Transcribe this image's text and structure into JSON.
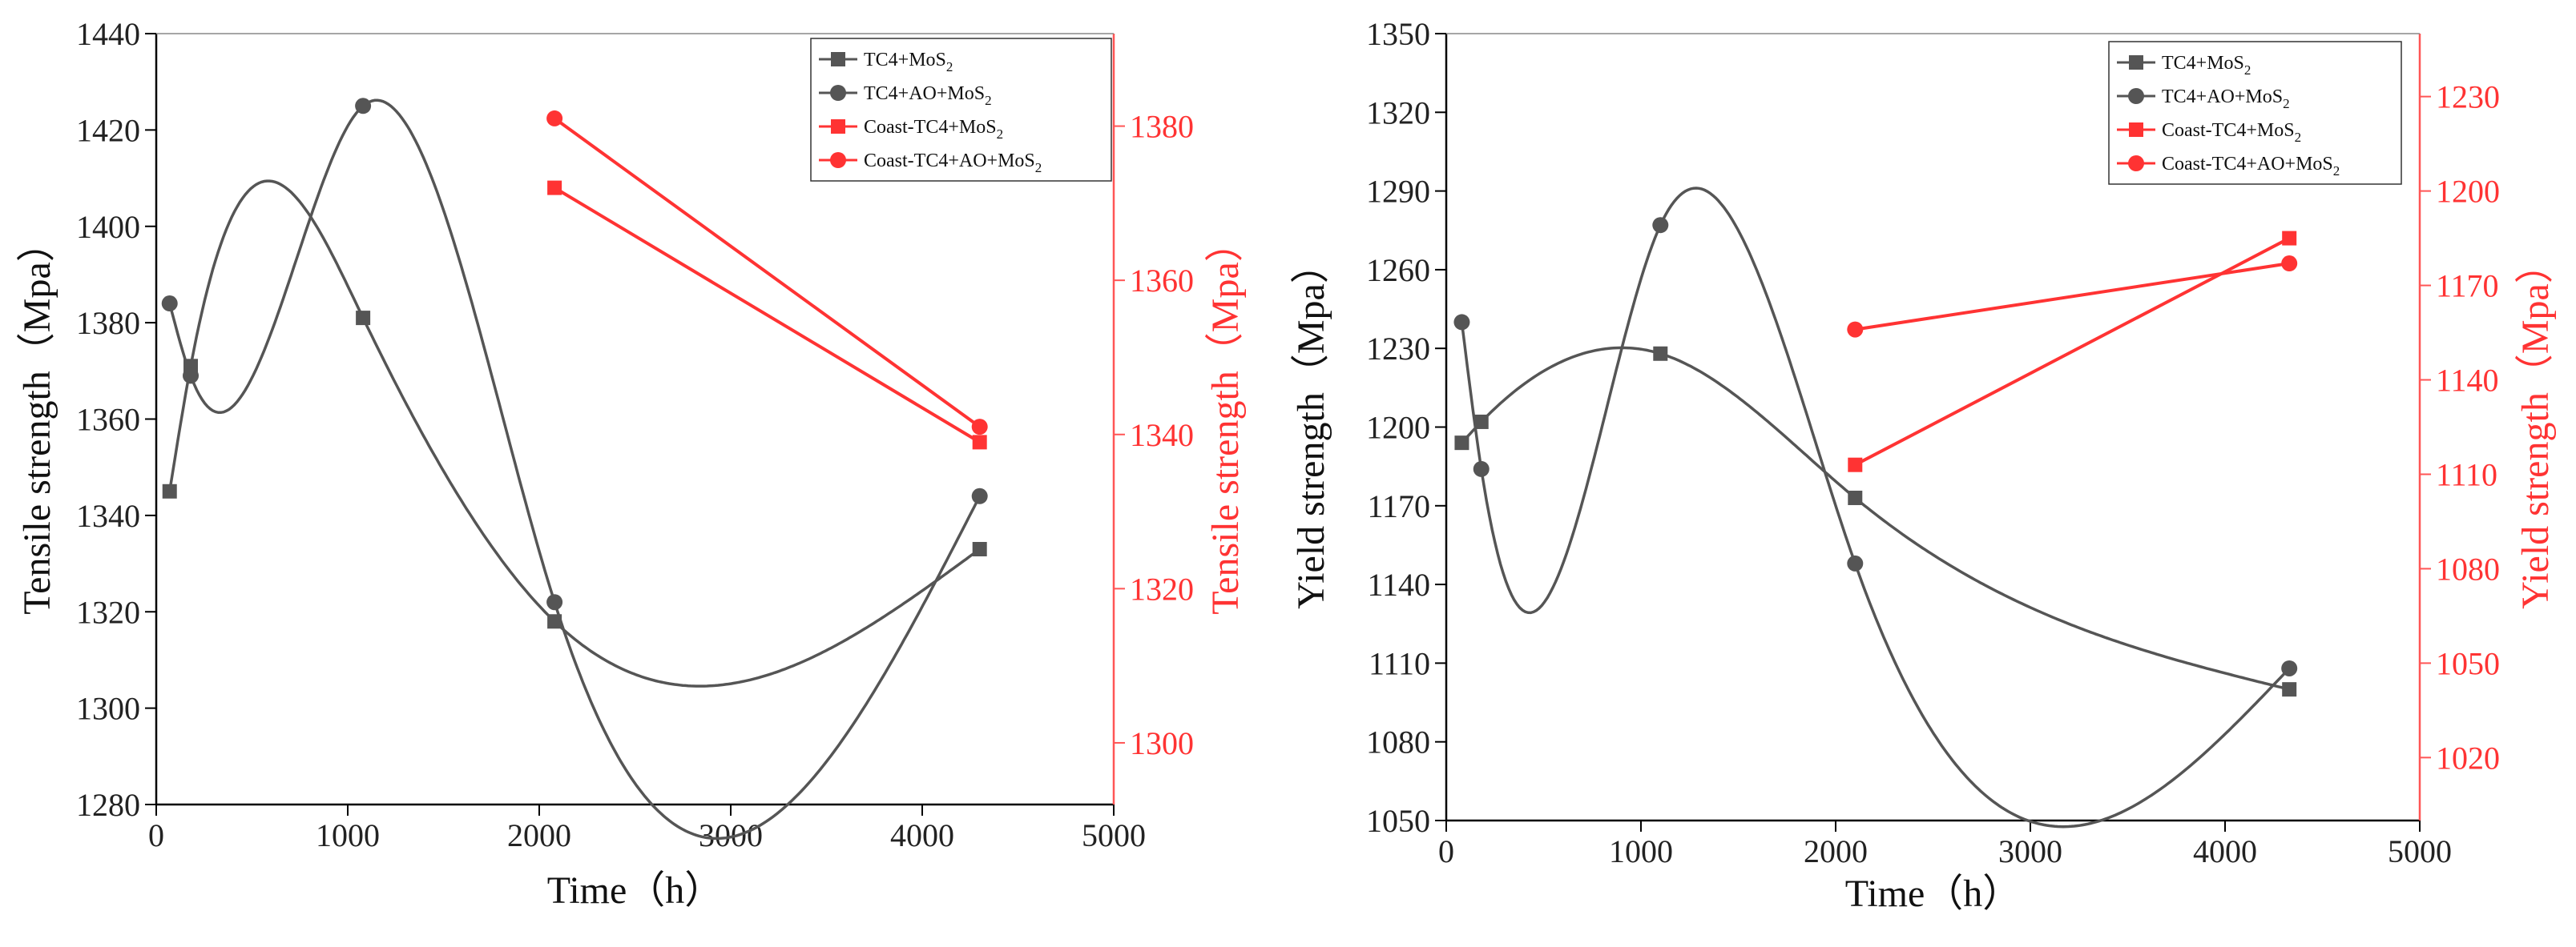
{
  "colors": {
    "black_series": "#555555",
    "red_series": "#ff3333",
    "axis": "#000000",
    "red_axis": "#ff5555"
  },
  "chart_data": [
    {
      "type": "line",
      "title": "",
      "xlabel": "Time（h）",
      "ylabel": "Tensile strength（Mpa）",
      "ylabel_right": "Tensile strength（Mpa）",
      "xlim": [
        0,
        5000
      ],
      "ylim": [
        1280,
        1440
      ],
      "ylim_right": [
        1292,
        1392
      ],
      "x_ticks": [
        "0",
        "1000",
        "2000",
        "3000",
        "4000",
        "5000"
      ],
      "y_ticks": [
        "1280",
        "1300",
        "1320",
        "1340",
        "1360",
        "1380",
        "1400",
        "1420",
        "1440"
      ],
      "y_ticks_right": [
        "1300",
        "1320",
        "1340",
        "1360",
        "1380"
      ],
      "series": [
        {
          "name": "TC4+MoS2",
          "axis": "left",
          "marker": "square",
          "color": "#555555",
          "smooth": true,
          "x": [
            70,
            180,
            1080,
            2080,
            4300
          ],
          "y": [
            1345,
            1371,
            1381,
            1318,
            1333
          ]
        },
        {
          "name": "TC4+AO+MoS2",
          "axis": "left",
          "marker": "circle",
          "color": "#555555",
          "smooth": true,
          "x": [
            70,
            180,
            1080,
            2080,
            4300
          ],
          "y": [
            1384,
            1369,
            1425,
            1322,
            1344
          ]
        },
        {
          "name": "Coast-TC4+MoS2",
          "axis": "right",
          "marker": "square",
          "color": "#ff3333",
          "smooth": false,
          "x": [
            2080,
            4300
          ],
          "y": [
            1372,
            1339
          ]
        },
        {
          "name": "Coast-TC4+AO+MoS2",
          "axis": "right",
          "marker": "circle",
          "color": "#ff3333",
          "smooth": false,
          "x": [
            2080,
            4300
          ],
          "y": [
            1381,
            1341
          ]
        }
      ],
      "legend": {
        "position": "top-right",
        "entries": [
          {
            "base": "TC4+MoS",
            "sub": "2"
          },
          {
            "base": "TC4+AO+MoS",
            "sub": "2"
          },
          {
            "base": "Coast-TC4+MoS",
            "sub": "2"
          },
          {
            "base": "Coast-TC4+AO+MoS",
            "sub": "2"
          }
        ]
      }
    },
    {
      "type": "line",
      "title": "",
      "xlabel": "Time（h）",
      "ylabel": "Yield strength（Mpa）",
      "ylabel_right": "Yield strength（Mpa）",
      "xlim": [
        0,
        5000
      ],
      "ylim": [
        1050,
        1350
      ],
      "ylim_right": [
        1000,
        1250
      ],
      "x_ticks": [
        "0",
        "1000",
        "2000",
        "3000",
        "4000",
        "5000"
      ],
      "y_ticks": [
        "1050",
        "1080",
        "1110",
        "1140",
        "1170",
        "1200",
        "1230",
        "1260",
        "1290",
        "1320",
        "1350"
      ],
      "y_ticks_right": [
        "1020",
        "1050",
        "1080",
        "1110",
        "1140",
        "1170",
        "1200",
        "1230"
      ],
      "series": [
        {
          "name": "TC4+MoS2",
          "axis": "left",
          "marker": "square",
          "color": "#555555",
          "smooth": true,
          "x": [
            80,
            180,
            1100,
            2100,
            4330
          ],
          "y": [
            1194,
            1202,
            1228,
            1173,
            1100
          ]
        },
        {
          "name": "TC4+AO+MoS2",
          "axis": "left",
          "marker": "circle",
          "color": "#555555",
          "smooth": true,
          "x": [
            80,
            180,
            1100,
            2100,
            4330
          ],
          "y": [
            1240,
            1184,
            1277,
            1148,
            1108
          ]
        },
        {
          "name": "Coast-TC4+MoS2",
          "axis": "right",
          "marker": "square",
          "color": "#ff3333",
          "smooth": false,
          "x": [
            2100,
            4330
          ],
          "y": [
            1113,
            1185
          ]
        },
        {
          "name": "Coast-TC4+AO+MoS2",
          "axis": "right",
          "marker": "circle",
          "color": "#ff3333",
          "smooth": false,
          "x": [
            2100,
            4330
          ],
          "y": [
            1156,
            1177
          ]
        }
      ],
      "legend": {
        "position": "top-right",
        "entries": [
          {
            "base": "TC4+MoS",
            "sub": "2"
          },
          {
            "base": "TC4+AO+MoS",
            "sub": "2"
          },
          {
            "base": "Coast-TC4+MoS",
            "sub": "2"
          },
          {
            "base": "Coast-TC4+AO+MoS",
            "sub": "2"
          }
        ]
      }
    }
  ]
}
